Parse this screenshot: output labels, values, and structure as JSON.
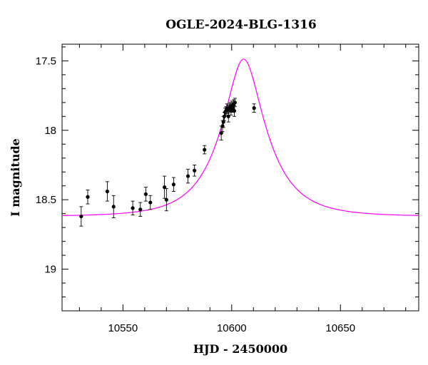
{
  "chart_data": {
    "type": "scatter",
    "title": "OGLE-2024-BLG-1316",
    "xlabel": "HJD - 2450000",
    "ylabel": "I magnitude",
    "xlim": [
      10522,
      10686
    ],
    "ylim": [
      19.3,
      17.38
    ],
    "y_inverted": true,
    "grid": false,
    "x_ticks": [
      {
        "value": 10550,
        "label": "10550"
      },
      {
        "value": 10600,
        "label": "10600"
      },
      {
        "value": 10650,
        "label": "10650"
      }
    ],
    "y_ticks": [
      {
        "value": 17.5,
        "label": "17.5"
      },
      {
        "value": 18.0,
        "label": "18"
      },
      {
        "value": 18.5,
        "label": "18.5"
      },
      {
        "value": 19.0,
        "label": "19"
      }
    ],
    "colors": {
      "points": "#000000",
      "model": "#ff00ff",
      "axes": "#000000"
    },
    "series": [
      {
        "kind": "data",
        "points": [
          {
            "x": 10530.8,
            "y": 18.62,
            "err": 0.07
          },
          {
            "x": 10533.8,
            "y": 18.48,
            "err": 0.05
          },
          {
            "x": 10542.8,
            "y": 18.44,
            "err": 0.07
          },
          {
            "x": 10545.7,
            "y": 18.55,
            "err": 0.08
          },
          {
            "x": 10554.5,
            "y": 18.56,
            "err": 0.05
          },
          {
            "x": 10558.0,
            "y": 18.57,
            "err": 0.05
          },
          {
            "x": 10560.5,
            "y": 18.46,
            "err": 0.05
          },
          {
            "x": 10562.6,
            "y": 18.52,
            "err": 0.05
          },
          {
            "x": 10569.1,
            "y": 18.41,
            "err": 0.08
          },
          {
            "x": 10570.0,
            "y": 18.5,
            "err": 0.08
          },
          {
            "x": 10573.3,
            "y": 18.39,
            "err": 0.05
          },
          {
            "x": 10579.9,
            "y": 18.33,
            "err": 0.05
          },
          {
            "x": 10582.9,
            "y": 18.29,
            "err": 0.04
          },
          {
            "x": 10587.5,
            "y": 18.14,
            "err": 0.03
          },
          {
            "x": 10595.2,
            "y": 18.02,
            "err": 0.05
          },
          {
            "x": 10595.8,
            "y": 17.97,
            "err": 0.04
          },
          {
            "x": 10596.2,
            "y": 17.94,
            "err": 0.04
          },
          {
            "x": 10596.6,
            "y": 17.9,
            "err": 0.03
          },
          {
            "x": 10597.0,
            "y": 17.87,
            "err": 0.03
          },
          {
            "x": 10597.4,
            "y": 17.86,
            "err": 0.03
          },
          {
            "x": 10597.8,
            "y": 17.84,
            "err": 0.03
          },
          {
            "x": 10598.2,
            "y": 17.85,
            "err": 0.03
          },
          {
            "x": 10598.5,
            "y": 17.9,
            "err": 0.04
          },
          {
            "x": 10598.9,
            "y": 17.84,
            "err": 0.03
          },
          {
            "x": 10599.3,
            "y": 17.83,
            "err": 0.03
          },
          {
            "x": 10599.7,
            "y": 17.86,
            "err": 0.03
          },
          {
            "x": 10600.1,
            "y": 17.82,
            "err": 0.03
          },
          {
            "x": 10600.5,
            "y": 17.84,
            "err": 0.03
          },
          {
            "x": 10600.9,
            "y": 17.81,
            "err": 0.03
          },
          {
            "x": 10601.2,
            "y": 17.86,
            "err": 0.04
          },
          {
            "x": 10601.5,
            "y": 17.8,
            "err": 0.03
          },
          {
            "x": 10610.3,
            "y": 17.84,
            "err": 0.03
          }
        ]
      },
      {
        "kind": "model",
        "type": "line",
        "baseline_mag": 18.62,
        "t0": 10605.5,
        "u0": 0.37,
        "tE": 20.0
      }
    ]
  }
}
